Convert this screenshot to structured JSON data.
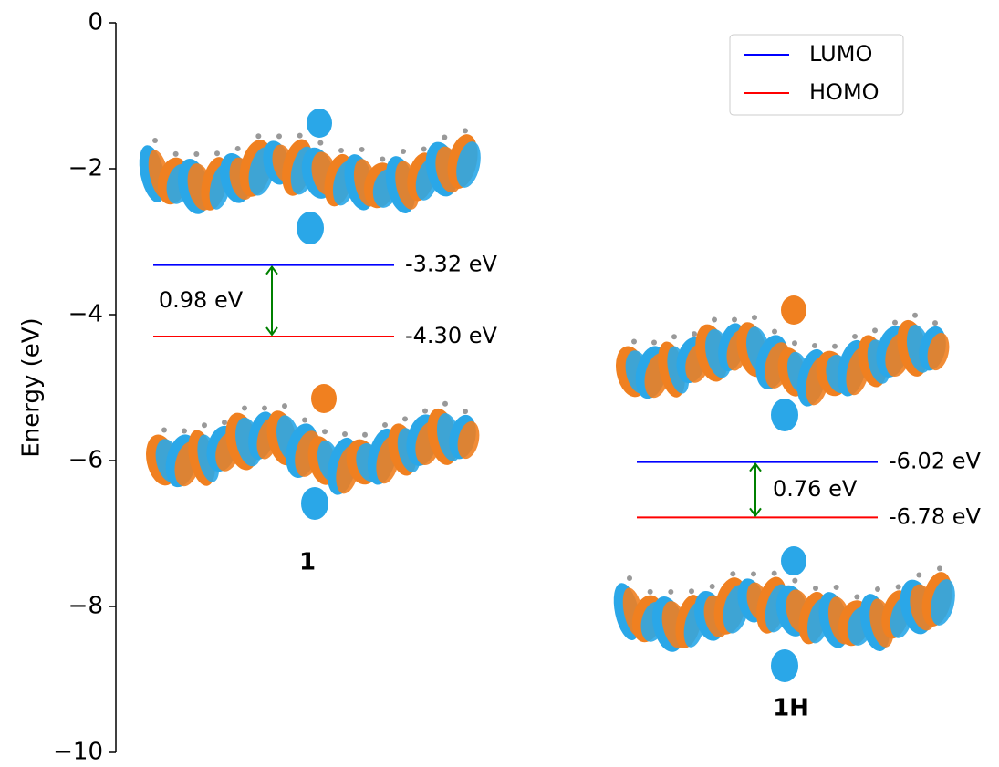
{
  "chart_data": {
    "type": "energy_level",
    "y_label": "Energy (eV)",
    "ylim": [
      -10,
      0
    ],
    "yticks": [
      0,
      {
        "value": -2,
        "label": "−2"
      },
      {
        "value": -4,
        "label": "−4"
      },
      {
        "value": -6,
        "label": "−6"
      },
      {
        "value": -8,
        "label": "−8"
      },
      {
        "value": -10,
        "label": "−10"
      }
    ],
    "categories": [
      "1",
      "1H"
    ],
    "series": [
      {
        "name": "LUMO",
        "color": "#0000ff",
        "values": [
          -3.32,
          -6.02
        ],
        "value_labels": [
          "-3.32 eV",
          "-6.02 eV"
        ]
      },
      {
        "name": "HOMO",
        "color": "#ff0000",
        "values": [
          -4.3,
          -6.78
        ],
        "value_labels": [
          "-4.30 eV",
          "-6.78 eV"
        ]
      }
    ],
    "gaps": {
      "color": "#008000",
      "values": [
        0.98,
        0.76
      ],
      "value_labels": [
        "0.98 eV",
        "0.76 eV"
      ]
    },
    "legend_position": "upper right"
  }
}
